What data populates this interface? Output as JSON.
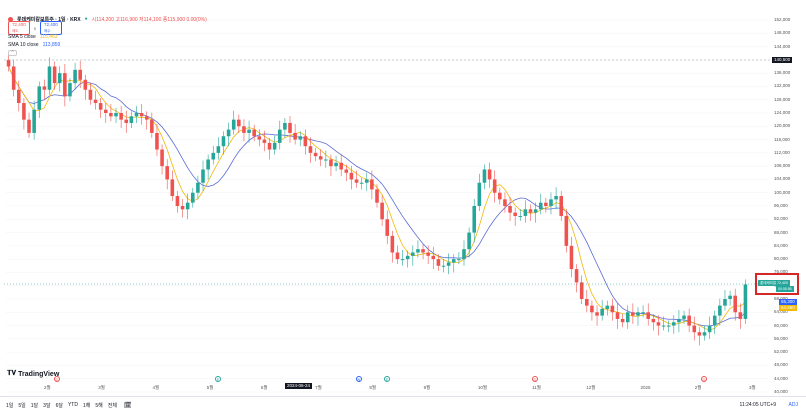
{
  "header": {
    "symbol_title": "롯데케미칼보통주 · 1일 · KRX",
    "ohlc": "시114,200 고116,900 저114,100 종115,900 0.00(0%)",
    "sell_price": "72,400",
    "sell_label": "매도",
    "buy_price": "72,400",
    "buy_label": "매수",
    "spread": "0",
    "sma5_label": "SMA 5 close",
    "sma5_value": "115,463",
    "sma10_label": "SMA 10 close",
    "sma10_value": "113,859"
  },
  "logo": "TradingView",
  "bottom": {
    "periods": [
      "1일",
      "5일",
      "1달",
      "3달",
      "6달",
      "YTD",
      "1해",
      "5해",
      "전체"
    ],
    "clock": "11:24:05 UTC+9",
    "adj": "ADJ"
  },
  "chart_data": {
    "type": "candlestick",
    "price_axis_ticks": [
      "152,000",
      "148,000",
      "144,000",
      "140,000",
      "136,000",
      "132,000",
      "128,000",
      "124,000",
      "120,000",
      "116,000",
      "112,000",
      "108,000",
      "104,000",
      "100,000",
      "96,000",
      "92,000",
      "88,000",
      "84,000",
      "80,000",
      "76,000",
      "72,000",
      "68,000",
      "64,000",
      "60,000",
      "56,000",
      "52,000",
      "48,000",
      "44,000",
      "40,000"
    ],
    "ylim": [
      40000,
      152000
    ],
    "time_axis_ticks": [
      "2월",
      "3월",
      "4월",
      "5월",
      "6월",
      "7월",
      "8월",
      "9월",
      "10월",
      "11월",
      "12월",
      "2025",
      "2월",
      "3월"
    ],
    "crosshair_date": "2024-06-24",
    "price_line_label": "140,500",
    "current_tag_top": "롯데케미칼 72,400",
    "current_tag_bottom": "00:05:55",
    "sma_tag_1": "65,300",
    "sma_tag_2": "64,860",
    "colors": {
      "up": "#26a69a",
      "down": "#ef5350",
      "sma5": "#f0b90b",
      "sma10": "#5b6bd6"
    },
    "closes": [
      138000,
      131000,
      127000,
      122000,
      118000,
      125000,
      132000,
      131000,
      138000,
      133000,
      136000,
      129000,
      133000,
      137000,
      134000,
      131000,
      128000,
      127000,
      125000,
      124000,
      123000,
      124000,
      122000,
      121000,
      123000,
      124000,
      123000,
      122000,
      118000,
      113000,
      108000,
      104000,
      99000,
      96000,
      95000,
      97000,
      100000,
      103000,
      107000,
      110000,
      112000,
      114000,
      117000,
      119000,
      122000,
      120000,
      118000,
      119000,
      117000,
      116000,
      115000,
      113000,
      115000,
      119000,
      121000,
      118000,
      116000,
      117000,
      114000,
      112000,
      111000,
      110000,
      110000,
      108000,
      109000,
      107000,
      106000,
      104000,
      103000,
      103000,
      104000,
      101000,
      97000,
      92000,
      87000,
      82000,
      80000,
      80000,
      81000,
      82000,
      83000,
      82000,
      81000,
      80000,
      78000,
      78000,
      79000,
      80000,
      80000,
      83000,
      88000,
      96000,
      103000,
      107000,
      104000,
      100000,
      98000,
      96000,
      94000,
      93000,
      93000,
      95000,
      94000,
      95000,
      97000,
      96000,
      98000,
      99000,
      93000,
      84000,
      77000,
      73000,
      68000,
      66000,
      64000,
      63000,
      65000,
      66000,
      64000,
      62000,
      61000,
      64000,
      63000,
      64000,
      64000,
      62000,
      61000,
      60000,
      60000,
      60000,
      61000,
      62000,
      63000,
      60000,
      58000,
      57000,
      58000,
      60000,
      63000,
      66000,
      68000,
      69000,
      64000,
      62000,
      72400
    ]
  }
}
